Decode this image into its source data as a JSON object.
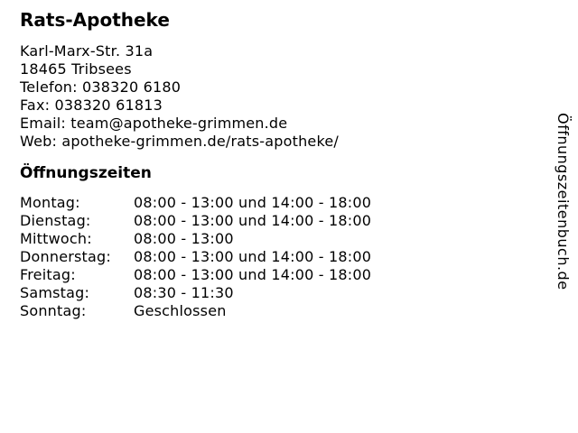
{
  "business": {
    "name": "Rats-Apotheke",
    "street": "Karl-Marx-Str. 31a",
    "city": "18465 Tribsees",
    "phone_label": "Telefon:",
    "phone_value": "038320 6180",
    "fax_label": "Fax:",
    "fax_value": "038320 61813",
    "email_label": "Email:",
    "email_value": "team@apotheke-grimmen.de",
    "web_label": "Web:",
    "web_value": "apotheke-grimmen.de/rats-apotheke/"
  },
  "hours": {
    "heading": "Öffnungszeiten",
    "rows": [
      {
        "day": "Montag:",
        "time": "08:00 - 13:00 und 14:00 - 18:00"
      },
      {
        "day": "Dienstag:",
        "time": "08:00 - 13:00 und 14:00 - 18:00"
      },
      {
        "day": "Mittwoch:",
        "time": "08:00 - 13:00"
      },
      {
        "day": "Donnerstag:",
        "time": "08:00 - 13:00 und 14:00 - 18:00"
      },
      {
        "day": "Freitag:",
        "time": "08:00 - 13:00 und 14:00 - 18:00"
      },
      {
        "day": "Samstag:",
        "time": "08:30 - 11:30"
      },
      {
        "day": "Sonntag:",
        "time": "Geschlossen"
      }
    ]
  },
  "watermark": {
    "label": "Öffnungszeitenbuch.de"
  },
  "colors": {
    "text": "#000000",
    "background": "#ffffff"
  }
}
